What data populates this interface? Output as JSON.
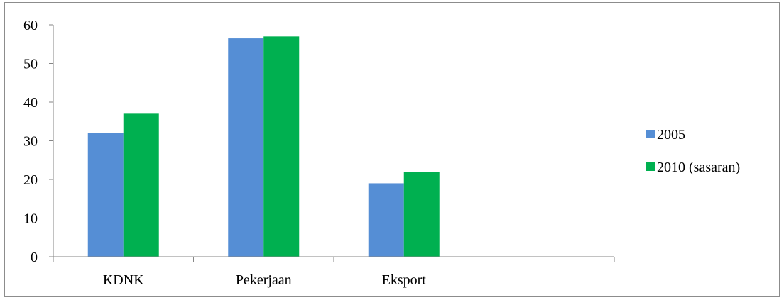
{
  "chart_data": {
    "type": "bar",
    "categories": [
      "KDNK",
      "Pekerjaan",
      "Eksport",
      ""
    ],
    "series": [
      {
        "name": "2005",
        "color": "#558ed5",
        "values": [
          32,
          56.5,
          19,
          null
        ]
      },
      {
        "name": "2010 (sasaran)",
        "color": "#00b050",
        "values": [
          37,
          57,
          22,
          null
        ]
      }
    ],
    "y_ticks": [
      0,
      10,
      20,
      30,
      40,
      50,
      60
    ],
    "ylim": [
      0,
      60
    ],
    "grid": false,
    "legend_position": "right"
  }
}
